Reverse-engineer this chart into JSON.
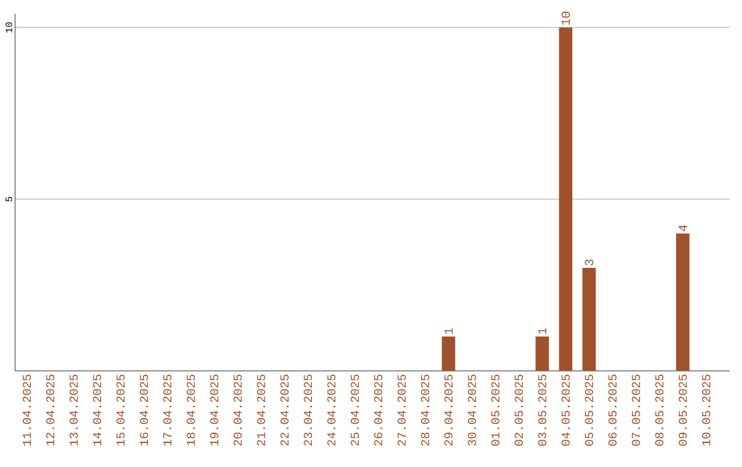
{
  "chart_data": {
    "type": "bar",
    "categories": [
      "11.04.2025",
      "12.04.2025",
      "13.04.2025",
      "14.04.2025",
      "15.04.2025",
      "16.04.2025",
      "17.04.2025",
      "18.04.2025",
      "19.04.2025",
      "20.04.2025",
      "21.04.2025",
      "22.04.2025",
      "23.04.2025",
      "24.04.2025",
      "25.04.2025",
      "26.04.2025",
      "27.04.2025",
      "28.04.2025",
      "29.04.2025",
      "30.04.2025",
      "01.05.2025",
      "02.05.2025",
      "03.05.2025",
      "04.05.2025",
      "05.05.2025",
      "06.05.2025",
      "07.05.2025",
      "08.05.2025",
      "09.05.2025",
      "10.05.2025"
    ],
    "values": [
      0,
      0,
      0,
      0,
      0,
      0,
      0,
      0,
      0,
      0,
      0,
      0,
      0,
      0,
      0,
      0,
      0,
      0,
      1,
      0,
      0,
      0,
      1,
      10,
      3,
      0,
      0,
      0,
      4,
      0
    ],
    "value_labels": [
      null,
      null,
      null,
      null,
      null,
      null,
      null,
      null,
      null,
      null,
      null,
      null,
      null,
      null,
      null,
      null,
      null,
      null,
      "1",
      null,
      null,
      null,
      "1",
      "10",
      "3",
      null,
      null,
      null,
      "4",
      null
    ],
    "color": "#a0522d",
    "ylim": [
      0,
      10.4
    ],
    "yticks": [
      5,
      10
    ],
    "grid": "y"
  }
}
